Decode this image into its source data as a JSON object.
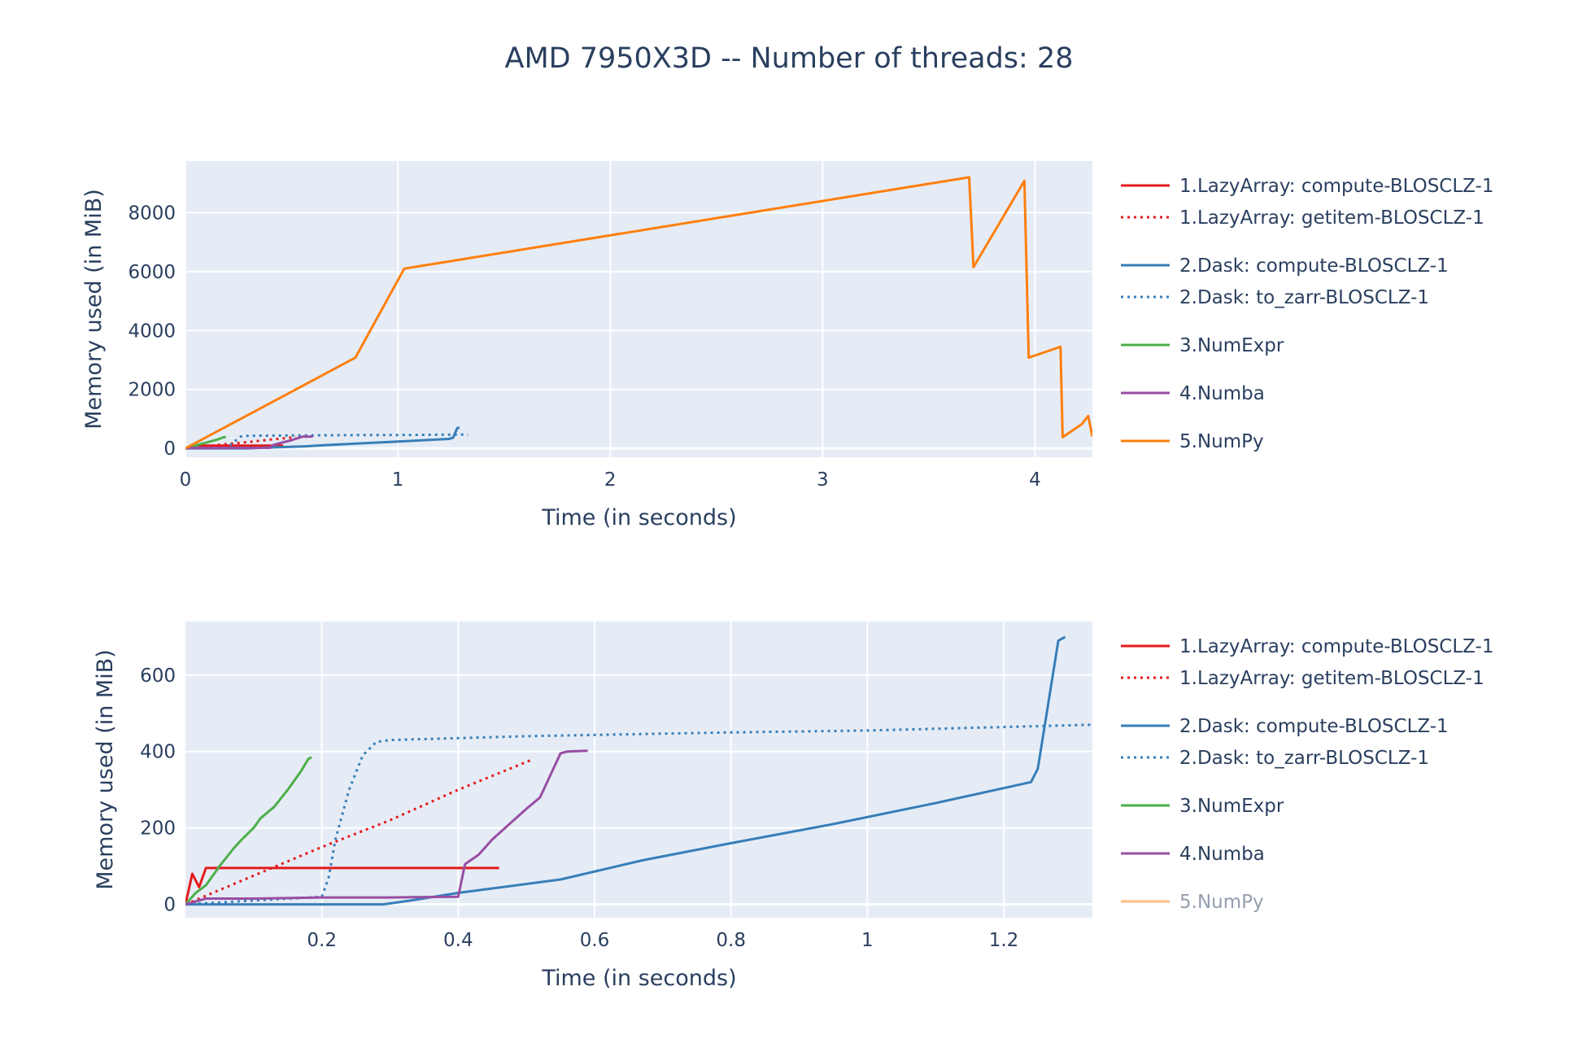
{
  "title": "AMD 7950X3D -- Number of threads: 28",
  "chart_data": [
    {
      "type": "line",
      "xlabel": "Time (in seconds)",
      "ylabel": "Memory used (in MiB)",
      "xlim": [
        0,
        4.27
      ],
      "ylim": [
        -300,
        9750
      ],
      "xticks": [
        0,
        1,
        2,
        3,
        4
      ],
      "xtick_labels": [
        "0",
        "1",
        "2",
        "3",
        "4"
      ],
      "yticks": [
        0,
        2000,
        4000,
        6000,
        8000
      ],
      "ytick_labels": [
        "0",
        "2000",
        "4000",
        "6000",
        "8000"
      ],
      "grid": true,
      "legend_position": "right",
      "series": [
        {
          "name": "1.LazyArray: compute-BLOSCLZ-1",
          "color": "#e41a1c",
          "dash": "solid",
          "hidden": false,
          "points": [
            [
              0,
              0
            ],
            [
              0.03,
              80
            ],
            [
              0.04,
              45
            ],
            [
              0.05,
              95
            ],
            [
              0.46,
              95
            ]
          ]
        },
        {
          "name": "1.LazyArray: getitem-BLOSCLZ-1",
          "color": "#e41a1c",
          "dash": "dot",
          "hidden": false,
          "points": [
            [
              0,
              0
            ],
            [
              0.1,
              75
            ],
            [
              0.2,
              150
            ],
            [
              0.3,
              220
            ],
            [
              0.4,
              300
            ],
            [
              0.52,
              380
            ]
          ]
        },
        {
          "name": "2.Dask: compute-BLOSCLZ-1",
          "color": "#377eb8",
          "dash": "solid",
          "hidden": false,
          "points": [
            [
              0,
              0
            ],
            [
              0.29,
              0
            ],
            [
              0.4,
              30
            ],
            [
              0.55,
              65
            ],
            [
              0.67,
              115
            ],
            [
              0.8,
              160
            ],
            [
              1.0,
              230
            ],
            [
              1.24,
              320
            ],
            [
              1.26,
              360
            ],
            [
              1.28,
              690
            ],
            [
              1.29,
              700
            ]
          ]
        },
        {
          "name": "2.Dask: to_zarr-BLOSCLZ-1",
          "color": "#377eb8",
          "dash": "dot",
          "hidden": false,
          "points": [
            [
              0,
              0
            ],
            [
              0.2,
              20
            ],
            [
              0.22,
              170
            ],
            [
              0.26,
              400
            ],
            [
              0.3,
              430
            ],
            [
              0.5,
              440
            ],
            [
              0.8,
              450
            ],
            [
              1.0,
              455
            ],
            [
              1.33,
              470
            ]
          ]
        },
        {
          "name": "3.NumExpr",
          "color": "#4daf4a",
          "dash": "solid",
          "hidden": false,
          "points": [
            [
              0,
              0
            ],
            [
              0.03,
              50
            ],
            [
              0.05,
              100
            ],
            [
              0.08,
              165
            ],
            [
              0.1,
              200
            ],
            [
              0.12,
              240
            ],
            [
              0.15,
              300
            ],
            [
              0.18,
              380
            ],
            [
              0.19,
              385
            ]
          ]
        },
        {
          "name": "4.Numba",
          "color": "#984ea3",
          "dash": "solid",
          "hidden": false,
          "points": [
            [
              0,
              0
            ],
            [
              0.03,
              15
            ],
            [
              0.1,
              15
            ],
            [
              0.2,
              18
            ],
            [
              0.3,
              18
            ],
            [
              0.4,
              20
            ],
            [
              0.41,
              105
            ],
            [
              0.44,
              170
            ],
            [
              0.5,
              280
            ],
            [
              0.55,
              395
            ],
            [
              0.6,
              400
            ]
          ]
        },
        {
          "name": "5.NumPy",
          "color": "#ff7f0e",
          "dash": "solid",
          "hidden": false,
          "points": [
            [
              0,
              0
            ],
            [
              0.8,
              3080
            ],
            [
              1.03,
              6100
            ],
            [
              3.69,
              9200
            ],
            [
              3.71,
              6150
            ],
            [
              3.95,
              9080
            ],
            [
              3.97,
              3080
            ],
            [
              4.12,
              3450
            ],
            [
              4.13,
              380
            ],
            [
              4.22,
              820
            ],
            [
              4.25,
              1100
            ],
            [
              4.27,
              400
            ]
          ]
        }
      ]
    },
    {
      "type": "line",
      "xlabel": "Time (in seconds)",
      "ylabel": "Memory used (in MiB)",
      "xlim": [
        0,
        1.33
      ],
      "ylim": [
        -35,
        740
      ],
      "xticks": [
        0.2,
        0.4,
        0.6,
        0.8,
        1.0,
        1.2
      ],
      "xtick_labels": [
        "0.2",
        "0.4",
        "0.6",
        "0.8",
        "1",
        "1.2"
      ],
      "yticks": [
        0,
        200,
        400,
        600
      ],
      "ytick_labels": [
        "0",
        "200",
        "400",
        "600"
      ],
      "grid": true,
      "legend_position": "right",
      "series": [
        {
          "name": "1.LazyArray: compute-BLOSCLZ-1",
          "color": "#e41a1c",
          "dash": "solid",
          "hidden": false,
          "points": [
            [
              0,
              0
            ],
            [
              0.01,
              80
            ],
            [
              0.02,
              45
            ],
            [
              0.03,
              95
            ],
            [
              0.46,
              95
            ]
          ]
        },
        {
          "name": "1.LazyArray: getitem-BLOSCLZ-1",
          "color": "#e41a1c",
          "dash": "dot",
          "hidden": false,
          "points": [
            [
              0,
              0
            ],
            [
              0.1,
              75
            ],
            [
              0.2,
              150
            ],
            [
              0.3,
              220
            ],
            [
              0.4,
              300
            ],
            [
              0.51,
              380
            ]
          ]
        },
        {
          "name": "2.Dask: compute-BLOSCLZ-1",
          "color": "#377eb8",
          "dash": "solid",
          "hidden": false,
          "points": [
            [
              0,
              0
            ],
            [
              0.29,
              0
            ],
            [
              0.33,
              10
            ],
            [
              0.4,
              30
            ],
            [
              0.55,
              65
            ],
            [
              0.67,
              115
            ],
            [
              0.8,
              160
            ],
            [
              0.95,
              210
            ],
            [
              1.1,
              265
            ],
            [
              1.24,
              320
            ],
            [
              1.25,
              355
            ],
            [
              1.28,
              690
            ],
            [
              1.29,
              700
            ]
          ]
        },
        {
          "name": "2.Dask: to_zarr-BLOSCLZ-1",
          "color": "#377eb8",
          "dash": "dot",
          "hidden": false,
          "points": [
            [
              0,
              0
            ],
            [
              0.2,
              20
            ],
            [
              0.21,
              70
            ],
            [
              0.22,
              170
            ],
            [
              0.24,
              300
            ],
            [
              0.26,
              390
            ],
            [
              0.28,
              425
            ],
            [
              0.3,
              430
            ],
            [
              0.5,
              440
            ],
            [
              0.8,
              450
            ],
            [
              1.0,
              455
            ],
            [
              1.33,
              470
            ]
          ]
        },
        {
          "name": "3.NumExpr",
          "color": "#4daf4a",
          "dash": "solid",
          "hidden": false,
          "points": [
            [
              0,
              0
            ],
            [
              0.015,
              30
            ],
            [
              0.03,
              50
            ],
            [
              0.05,
              100
            ],
            [
              0.07,
              145
            ],
            [
              0.08,
              165
            ],
            [
              0.1,
              200
            ],
            [
              0.11,
              225
            ],
            [
              0.13,
              255
            ],
            [
              0.15,
              300
            ],
            [
              0.17,
              350
            ],
            [
              0.18,
              380
            ],
            [
              0.185,
              385
            ]
          ]
        },
        {
          "name": "4.Numba",
          "color": "#984ea3",
          "dash": "solid",
          "hidden": false,
          "points": [
            [
              0,
              0
            ],
            [
              0.03,
              15
            ],
            [
              0.1,
              15
            ],
            [
              0.2,
              18
            ],
            [
              0.3,
              18
            ],
            [
              0.4,
              20
            ],
            [
              0.41,
              105
            ],
            [
              0.43,
              130
            ],
            [
              0.45,
              170
            ],
            [
              0.5,
              250
            ],
            [
              0.52,
              280
            ],
            [
              0.55,
              395
            ],
            [
              0.56,
              400
            ],
            [
              0.59,
              402
            ]
          ]
        },
        {
          "name": "5.NumPy",
          "color": "#ff7f0e",
          "dash": "solid",
          "hidden": true,
          "points": []
        }
      ]
    }
  ]
}
